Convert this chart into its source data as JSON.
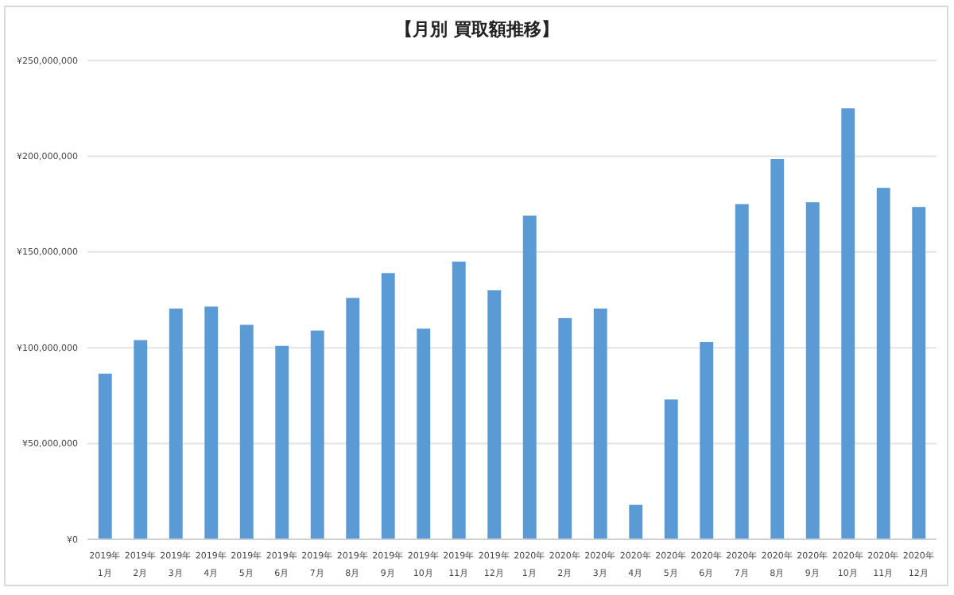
{
  "chart_data": {
    "type": "bar",
    "title": "【月別 買取額推移】",
    "categories": [
      "2019年 1月",
      "2019年 2月",
      "2019年 3月",
      "2019年 4月",
      "2019年 5月",
      "2019年 6月",
      "2019年 7月",
      "2019年 8月",
      "2019年 9月",
      "2019年 10月",
      "2019年 11月",
      "2019年 12月",
      "2020年 1月",
      "2020年 2月",
      "2020年 3月",
      "2020年 4月",
      "2020年 5月",
      "2020年 6月",
      "2020年 7月",
      "2020年 8月",
      "2020年 9月",
      "2020年 10月",
      "2020年 11月",
      "2020年 12月"
    ],
    "values": [
      86500000,
      104000000,
      120500000,
      121500000,
      112000000,
      101000000,
      109000000,
      126000000,
      139000000,
      110000000,
      145000000,
      130000000,
      169000000,
      115500000,
      120500000,
      18000000,
      73000000,
      103000000,
      175000000,
      198500000,
      176000000,
      225000000,
      183500000,
      173500000
    ],
    "color": "#5b9bd5",
    "ylim": [
      0,
      250000000
    ],
    "yticks": [
      {
        "value": 0,
        "label": "¥0"
      },
      {
        "value": 50000000,
        "label": "¥50,000,000"
      },
      {
        "value": 100000000,
        "label": "¥100,000,000"
      },
      {
        "value": 150000000,
        "label": "¥150,000,000"
      },
      {
        "value": 200000000,
        "label": "¥200,000,000"
      },
      {
        "value": 250000000,
        "label": "¥250,000,000"
      }
    ],
    "grid": "y"
  }
}
